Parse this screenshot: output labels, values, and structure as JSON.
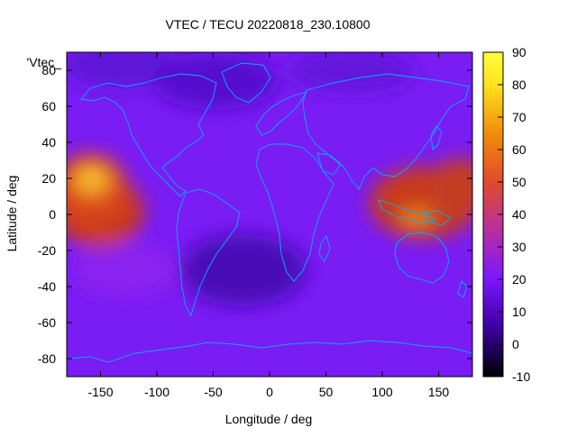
{
  "chart_data": {
    "type": "heatmap",
    "title": "VTEC / TECU 20220818_230.10800",
    "xlabel": "Longitude / deg",
    "ylabel": "Latitude / deg",
    "series_label": "'Vtec_",
    "xlim": [
      -180,
      180
    ],
    "ylim": [
      -90,
      90
    ],
    "x_ticks": [
      -150,
      -100,
      -50,
      0,
      50,
      100,
      150
    ],
    "y_ticks": [
      -80,
      -60,
      -40,
      -20,
      0,
      20,
      40,
      60,
      80
    ],
    "colorbar": {
      "range": [
        -10,
        90
      ],
      "ticks": [
        -10,
        0,
        10,
        20,
        30,
        40,
        50,
        60,
        70,
        80,
        90
      ],
      "palette": [
        "#000000",
        "#3c00a0",
        "#7a17ff",
        "#b82ea0",
        "#e04b2a",
        "#f28c0a",
        "#ffe21c",
        "#ffff40"
      ]
    },
    "features": [
      {
        "name": "central-pacific-peak",
        "lon": -160,
        "lat": 18,
        "value": 75
      },
      {
        "name": "east-pacific-band",
        "lon": -155,
        "lat": -10,
        "value": 50
      },
      {
        "name": "west-pacific-band",
        "lon": 130,
        "lat": 0,
        "value": 50
      },
      {
        "name": "indonesia-peak",
        "lon": 130,
        "lat": -2,
        "value": 62
      },
      {
        "name": "south-atlantic-low",
        "lon": -20,
        "lat": -28,
        "value": 8
      },
      {
        "name": "north-pacific-low",
        "lon": -140,
        "lat": 70,
        "value": 14
      },
      {
        "name": "north-atlantic-low",
        "lon": -30,
        "lat": 65,
        "value": 13
      }
    ],
    "background_value": 18,
    "coastline_color": "#00b0ff"
  }
}
